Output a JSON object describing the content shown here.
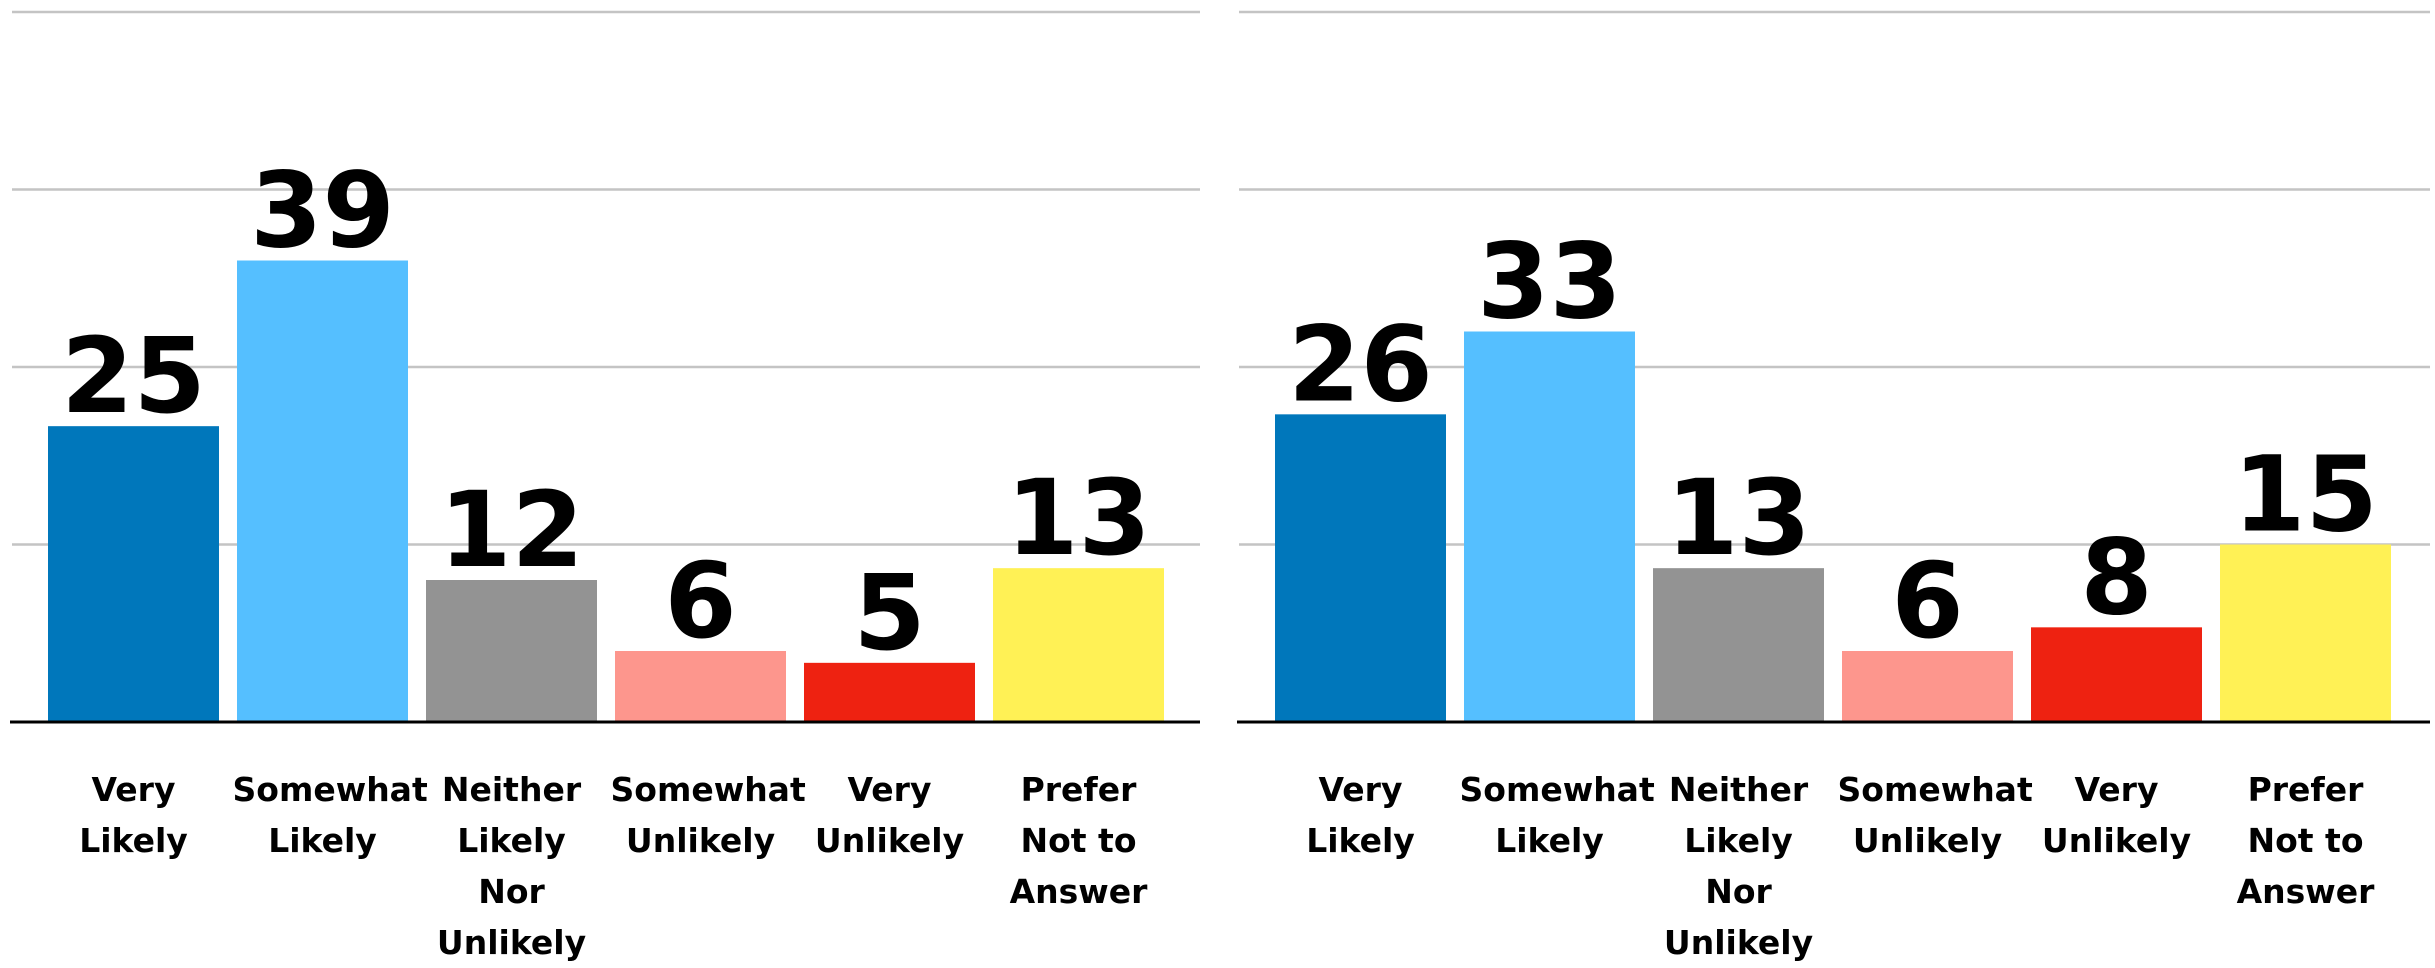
{
  "chart_data": [
    {
      "type": "bar",
      "categories": [
        "Very Likely",
        "Somewhat Likely",
        "Neither Likely Nor Unlikely",
        "Somewhat Unlikely",
        "Very Unlikely",
        "Prefer Not to Answer"
      ],
      "values": [
        25,
        39,
        12,
        6,
        5,
        13
      ],
      "colors": [
        "#0077bb",
        "#55bfff",
        "#939393",
        "#fd968d",
        "#ee2211",
        "#fff155"
      ],
      "ylim": [
        0,
        60
      ],
      "yticks": [
        0,
        15,
        30,
        45,
        60
      ],
      "grid": true
    },
    {
      "type": "bar",
      "categories": [
        "Very Likely",
        "Somewhat Likely",
        "Neither Likely Nor Unlikely",
        "Somewhat Unlikely",
        "Very Unlikely",
        "Prefer Not to Answer"
      ],
      "values": [
        26,
        33,
        13,
        6,
        8,
        15
      ],
      "colors": [
        "#0077bb",
        "#55bfff",
        "#939393",
        "#fd968d",
        "#ee2211",
        "#fff155"
      ],
      "ylim": [
        0,
        60
      ],
      "yticks": [
        0,
        15,
        30,
        45,
        60
      ],
      "grid": true
    }
  ]
}
